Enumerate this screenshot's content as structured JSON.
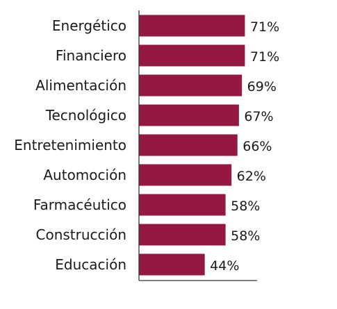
{
  "chart_data": {
    "type": "bar",
    "orientation": "horizontal",
    "categories": [
      "Energético",
      "Financiero",
      "Alimentación",
      "Tecnológico",
      "Entretenimiento",
      "Automoción",
      "Farmacéutico",
      "Construcción",
      "Educación"
    ],
    "values": [
      71,
      71,
      69,
      67,
      66,
      62,
      58,
      58,
      44
    ],
    "value_labels": [
      "71%",
      "71%",
      "69%",
      "67%",
      "66%",
      "62%",
      "58%",
      "58%",
      "44%"
    ],
    "unit": "%",
    "title": "",
    "xlabel": "",
    "ylabel": "",
    "xlim": [
      0,
      80
    ],
    "grid": false,
    "legend": "none",
    "bar_color": "#941744"
  }
}
